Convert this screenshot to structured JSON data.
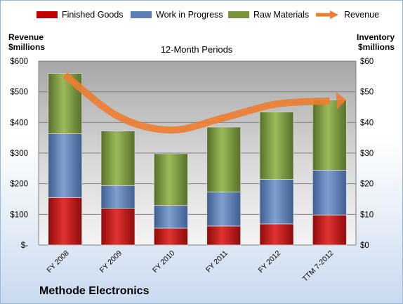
{
  "chart_data": {
    "type": "bar",
    "stacked": true,
    "subtitle": "12-Month Periods",
    "categories": [
      "FY 2008",
      "FY 2009",
      "FY 2010",
      "FY 2011",
      "FY 2012",
      "TTM 7-2012"
    ],
    "series": [
      {
        "name": "Finished Goods",
        "axis": "right",
        "color": "#c00000",
        "values": [
          15.5,
          12.0,
          5.5,
          6.2,
          6.9,
          9.8
        ]
      },
      {
        "name": "Work in Progress",
        "axis": "right",
        "color": "#5b7fb5",
        "values": [
          20.8,
          7.4,
          7.4,
          11.1,
          14.5,
          14.6
        ]
      },
      {
        "name": "Raw Materials",
        "axis": "right",
        "color": "#77933c",
        "values": [
          19.7,
          17.8,
          16.9,
          21.2,
          22.0,
          23.0
        ]
      },
      {
        "name": "Revenue",
        "type": "line",
        "axis": "left",
        "color": "#ed7d31",
        "values": [
          555,
          420,
          375,
          415,
          460,
          470
        ]
      }
    ],
    "left_axis": {
      "label_line1": "Revenue",
      "label_line2": "$millions",
      "ylim": [
        0,
        600
      ],
      "ticks": [
        "$-",
        "$100",
        "$200",
        "$300",
        "$400",
        "$500",
        "$600"
      ]
    },
    "right_axis": {
      "label_line1": "Inventory",
      "label_line2": "$millions",
      "ylim": [
        0,
        60
      ],
      "ticks": [
        "$0",
        "$10",
        "$20",
        "$30",
        "$40",
        "$50",
        "$60"
      ]
    },
    "grid": true,
    "legend_position": "top"
  },
  "company": "Methode Electronics"
}
